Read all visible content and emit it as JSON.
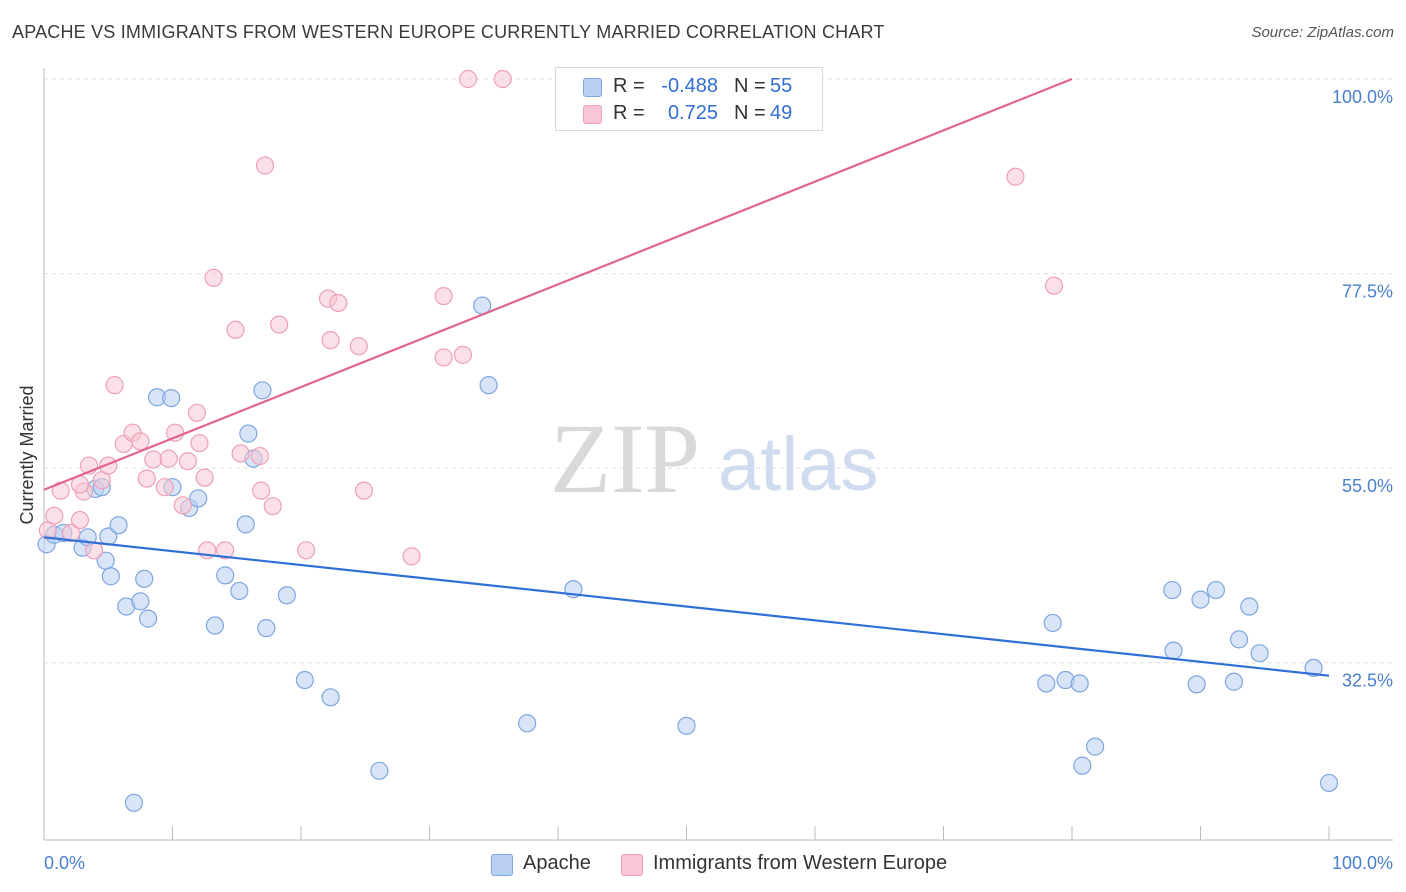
{
  "title": "APACHE VS IMMIGRANTS FROM WESTERN EUROPE CURRENTLY MARRIED CORRELATION CHART",
  "source": "Source: ZipAtlas.com",
  "watermark": {
    "zip": "ZIP",
    "atlas": "atlas"
  },
  "colors": {
    "apache_fill": "#b8d0f4",
    "apache_stroke": "#7ea6e0",
    "apache_line": "#2f6fd6",
    "immig_fill": "#f8c6d4",
    "immig_stroke": "#eea0b8",
    "immig_line": "#e2648e",
    "grid": "#dddddd",
    "axis": "#bbbbbb",
    "tick_text": "#4a7fd0"
  },
  "legend": {
    "rows": [
      {
        "r_label": "R =",
        "r_value": "-0.488",
        "n_label": "N =",
        "n_value": "55"
      },
      {
        "r_label": "R =",
        "r_value": "0.725",
        "n_label": "N =",
        "n_value": "49"
      }
    ]
  },
  "bottom_legend": {
    "apache": "Apache",
    "immigrants": "Immigrants from Western Europe"
  },
  "chart_data": {
    "type": "scatter",
    "xlabel": "",
    "ylabel": "Currently Married",
    "xlim": [
      0,
      100
    ],
    "ylim": [
      12,
      100
    ],
    "x_tick_labels": [
      "0.0%",
      "100.0%"
    ],
    "y_ticks": [
      32.5,
      55.0,
      77.5,
      100.0
    ],
    "y_tick_labels": [
      "32.5%",
      "55.0%",
      "77.5%",
      "100.0%"
    ],
    "grid": true,
    "series": [
      {
        "name": "Apache",
        "trend": {
          "x": [
            0,
            100
          ],
          "y": [
            47.0,
            31.0
          ]
        },
        "points": [
          [
            0.2,
            46.2
          ],
          [
            0.8,
            47.3
          ],
          [
            1.5,
            47.5
          ],
          [
            3.0,
            45.8
          ],
          [
            3.4,
            47.0
          ],
          [
            4.0,
            52.6
          ],
          [
            4.5,
            52.8
          ],
          [
            5.0,
            47.1
          ],
          [
            5.8,
            48.4
          ],
          [
            4.8,
            44.3
          ],
          [
            5.2,
            42.5
          ],
          [
            6.4,
            39.0
          ],
          [
            7.5,
            39.6
          ],
          [
            7.8,
            42.2
          ],
          [
            8.1,
            37.6
          ],
          [
            8.8,
            63.2
          ],
          [
            9.9,
            63.1
          ],
          [
            11.3,
            50.4
          ],
          [
            12.0,
            51.5
          ],
          [
            13.3,
            36.8
          ],
          [
            14.1,
            42.6
          ],
          [
            15.2,
            40.8
          ],
          [
            15.7,
            48.5
          ],
          [
            15.9,
            59.0
          ],
          [
            16.3,
            56.1
          ],
          [
            17.0,
            64.0
          ],
          [
            17.3,
            36.5
          ],
          [
            18.9,
            40.3
          ],
          [
            20.3,
            30.5
          ],
          [
            22.3,
            28.5
          ],
          [
            26.1,
            20.0
          ],
          [
            34.1,
            73.8
          ],
          [
            34.6,
            64.6
          ],
          [
            37.6,
            25.5
          ],
          [
            41.2,
            41.0
          ],
          [
            50.0,
            25.2
          ],
          [
            78.0,
            30.1
          ],
          [
            78.5,
            37.1
          ],
          [
            79.5,
            30.5
          ],
          [
            80.6,
            30.1
          ],
          [
            80.8,
            20.6
          ],
          [
            81.8,
            22.8
          ],
          [
            87.8,
            40.9
          ],
          [
            87.9,
            33.9
          ],
          [
            89.7,
            30.0
          ],
          [
            90.0,
            39.8
          ],
          [
            91.2,
            40.9
          ],
          [
            92.6,
            30.3
          ],
          [
            93.0,
            35.2
          ],
          [
            93.8,
            39.0
          ],
          [
            94.6,
            33.6
          ],
          [
            98.8,
            31.9
          ],
          [
            100.0,
            18.6
          ],
          [
            7.0,
            16.3
          ],
          [
            10.0,
            52.8
          ]
        ]
      },
      {
        "name": "Immigrants from Western Europe",
        "trend": {
          "x": [
            0,
            80
          ],
          "y": [
            52.5,
            100.0
          ]
        },
        "points": [
          [
            0.3,
            47.8
          ],
          [
            0.8,
            49.5
          ],
          [
            1.3,
            52.4
          ],
          [
            2.1,
            47.5
          ],
          [
            2.8,
            49.0
          ],
          [
            3.1,
            52.3
          ],
          [
            2.8,
            53.1
          ],
          [
            3.5,
            55.3
          ],
          [
            3.9,
            45.5
          ],
          [
            4.5,
            53.6
          ],
          [
            5.0,
            55.3
          ],
          [
            5.5,
            64.6
          ],
          [
            6.2,
            57.8
          ],
          [
            6.9,
            59.1
          ],
          [
            7.5,
            58.1
          ],
          [
            8.0,
            53.8
          ],
          [
            8.5,
            56.0
          ],
          [
            9.4,
            52.8
          ],
          [
            9.7,
            56.1
          ],
          [
            10.2,
            59.1
          ],
          [
            10.8,
            50.7
          ],
          [
            11.2,
            55.8
          ],
          [
            11.9,
            61.4
          ],
          [
            12.1,
            57.9
          ],
          [
            12.5,
            53.9
          ],
          [
            12.7,
            45.5
          ],
          [
            13.2,
            77.0
          ],
          [
            14.1,
            45.5
          ],
          [
            14.9,
            71.0
          ],
          [
            15.3,
            56.7
          ],
          [
            16.8,
            56.4
          ],
          [
            16.9,
            52.4
          ],
          [
            17.2,
            90.0
          ],
          [
            17.8,
            50.6
          ],
          [
            18.3,
            71.6
          ],
          [
            20.4,
            45.5
          ],
          [
            22.1,
            74.6
          ],
          [
            22.3,
            69.8
          ],
          [
            22.9,
            74.1
          ],
          [
            24.5,
            69.1
          ],
          [
            24.9,
            52.4
          ],
          [
            28.6,
            44.8
          ],
          [
            31.1,
            67.8
          ],
          [
            31.1,
            74.9
          ],
          [
            32.6,
            68.1
          ],
          [
            33.0,
            100.0
          ],
          [
            35.7,
            100.0
          ],
          [
            75.6,
            88.7
          ],
          [
            78.6,
            76.1
          ]
        ]
      }
    ]
  }
}
